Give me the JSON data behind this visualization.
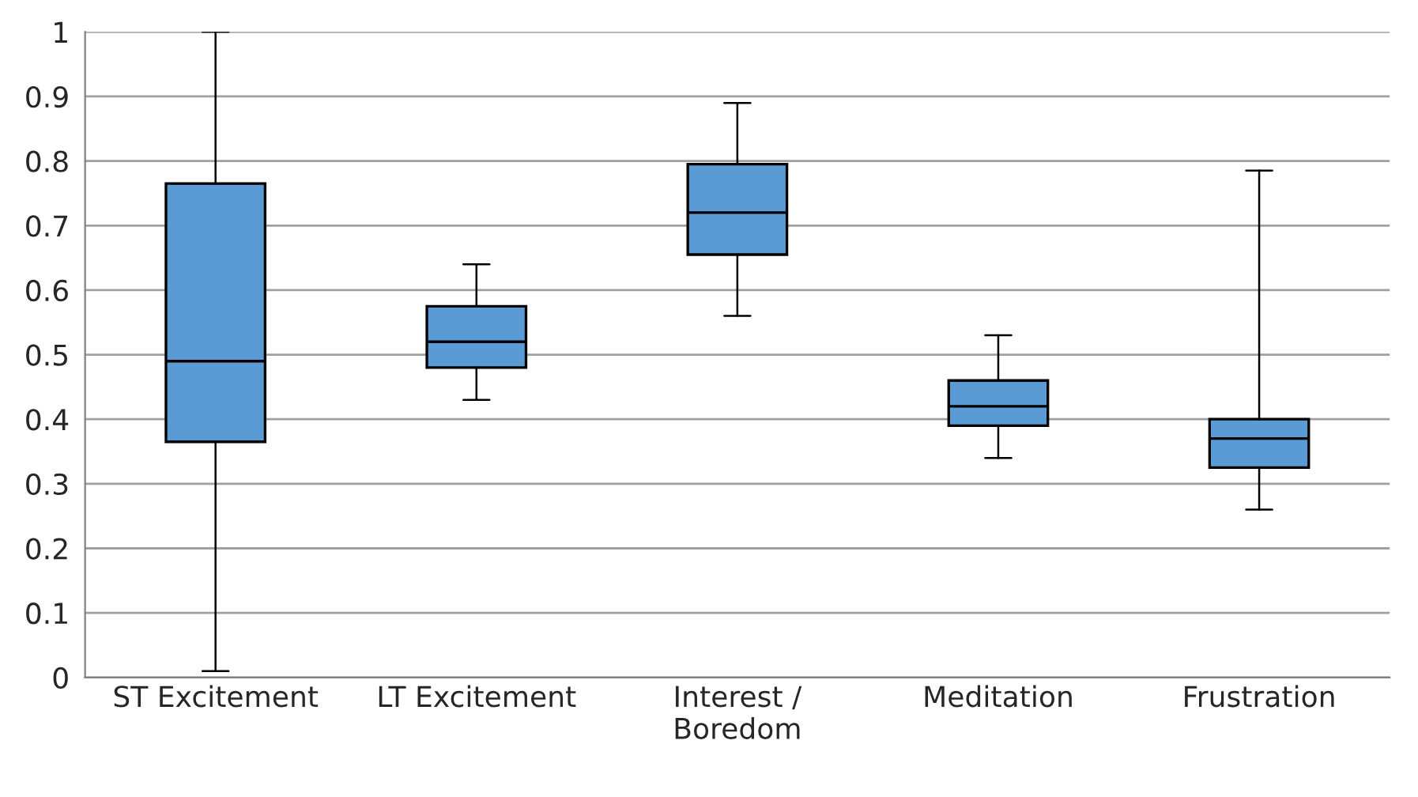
{
  "chart_data": {
    "type": "box",
    "categories": [
      "ST Excitement",
      "LT Excitement",
      "Interest /\nBoredom",
      "Meditation",
      "Frustration"
    ],
    "boxes": [
      {
        "low": 0.01,
        "q1": 0.365,
        "median": 0.49,
        "q3": 0.765,
        "high": 1.0
      },
      {
        "low": 0.43,
        "q1": 0.48,
        "median": 0.52,
        "q3": 0.575,
        "high": 0.64
      },
      {
        "low": 0.56,
        "q1": 0.655,
        "median": 0.72,
        "q3": 0.795,
        "high": 0.89
      },
      {
        "low": 0.34,
        "q1": 0.39,
        "median": 0.42,
        "q3": 0.46,
        "high": 0.53
      },
      {
        "low": 0.26,
        "q1": 0.325,
        "median": 0.37,
        "q3": 0.4,
        "high": 0.785
      }
    ],
    "color": "#5b9bd5",
    "ylim": [
      0,
      1
    ],
    "yticks": [
      0,
      0.1,
      0.2,
      0.3,
      0.4,
      0.5,
      0.6,
      0.7,
      0.8,
      0.9,
      1
    ],
    "grid": "y",
    "legend": false
  }
}
